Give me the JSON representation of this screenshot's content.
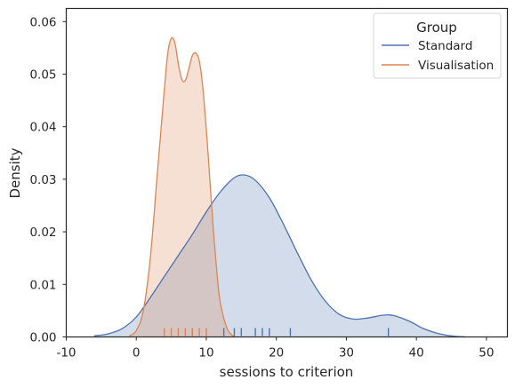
{
  "chart_data": {
    "type": "area",
    "xlabel": "sessions to criterion",
    "ylabel": "Density",
    "xlim": [
      -10,
      53
    ],
    "ylim": [
      0,
      0.0625
    ],
    "xticks": [
      -10,
      0,
      10,
      20,
      30,
      40,
      50
    ],
    "yticks": [
      0.0,
      0.01,
      0.02,
      0.03,
      0.04,
      0.05,
      0.06
    ],
    "ytick_labels": [
      "0.00",
      "0.01",
      "0.02",
      "0.03",
      "0.04",
      "0.05",
      "0.06"
    ],
    "grid": false,
    "legend": {
      "title": "Group",
      "placement": "top-right"
    },
    "series": [
      {
        "name": "Standard",
        "color": "#4c72b0",
        "fill_color": "#c9d5ea",
        "curve_x": [
          -6,
          -4,
          -2,
          0,
          2,
          4,
          6,
          8,
          10,
          12,
          14,
          15.5,
          17,
          19,
          21,
          23,
          25,
          27,
          29,
          31,
          33,
          35,
          36,
          37,
          39,
          41,
          43,
          45,
          47
        ],
        "curve_y": [
          0.0002,
          0.0006,
          0.0016,
          0.0038,
          0.0075,
          0.0115,
          0.0155,
          0.0195,
          0.0238,
          0.0276,
          0.0303,
          0.0308,
          0.0298,
          0.0265,
          0.0215,
          0.016,
          0.0108,
          0.0068,
          0.0043,
          0.0034,
          0.0036,
          0.0041,
          0.0042,
          0.004,
          0.003,
          0.0016,
          0.0007,
          0.0002,
          0.0
        ],
        "rug": [
          8,
          12.5,
          14,
          15,
          17,
          18,
          19,
          22,
          36
        ]
      },
      {
        "name": "Visualisation",
        "color": "#dd8452",
        "fill_color": "#f5d7c7",
        "curve_x": [
          -1,
          0,
          1,
          2,
          3,
          4,
          4.5,
          5,
          5.5,
          6,
          6.5,
          7,
          7.5,
          8,
          8.5,
          9,
          9.5,
          10,
          10.5,
          11,
          11.5,
          12,
          13,
          14
        ],
        "curve_y": [
          0.0002,
          0.0012,
          0.005,
          0.015,
          0.031,
          0.047,
          0.054,
          0.0568,
          0.056,
          0.052,
          0.049,
          0.0488,
          0.051,
          0.0535,
          0.054,
          0.0525,
          0.0475,
          0.0395,
          0.03,
          0.0205,
          0.0125,
          0.0065,
          0.0015,
          0.0
        ],
        "rug": [
          4,
          5,
          6,
          7,
          8,
          9,
          10
        ]
      }
    ]
  }
}
